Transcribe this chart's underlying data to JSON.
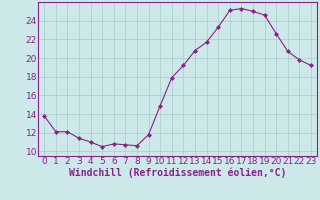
{
  "x": [
    0,
    1,
    2,
    3,
    4,
    5,
    6,
    7,
    8,
    9,
    10,
    11,
    12,
    13,
    14,
    15,
    16,
    17,
    18,
    19,
    20,
    21,
    22,
    23
  ],
  "y": [
    13.8,
    12.1,
    12.1,
    11.4,
    11.0,
    10.5,
    10.8,
    10.7,
    10.6,
    11.8,
    14.9,
    17.9,
    19.2,
    20.8,
    21.7,
    23.3,
    25.1,
    25.3,
    25.0,
    24.6,
    22.6,
    20.7,
    19.8,
    19.2
  ],
  "line_color": "#882288",
  "marker": "D",
  "marker_size": 2.0,
  "bg_color": "#cce8e8",
  "grid_color": "#aacccc",
  "xlabel": "Windchill (Refroidissement éolien,°C)",
  "xlabel_fontsize": 7,
  "tick_fontsize": 6.5,
  "ylim": [
    9.5,
    26.0
  ],
  "yticks": [
    10,
    12,
    14,
    16,
    18,
    20,
    22,
    24
  ],
  "xlim": [
    -0.5,
    23.5
  ],
  "xticks": [
    0,
    1,
    2,
    3,
    4,
    5,
    6,
    7,
    8,
    9,
    10,
    11,
    12,
    13,
    14,
    15,
    16,
    17,
    18,
    19,
    20,
    21,
    22,
    23
  ]
}
